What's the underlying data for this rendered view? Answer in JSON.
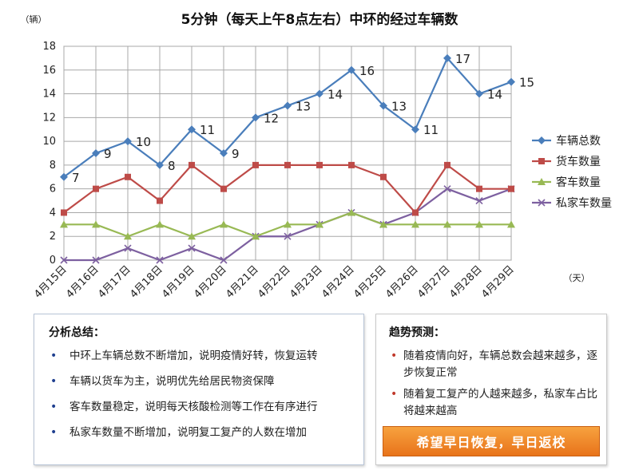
{
  "chart_data": {
    "type": "line",
    "title": "5分钟（每天上午8点左右）中环的经过车辆数",
    "y_unit": "（辆）",
    "x_unit": "（天）",
    "ylim": [
      0,
      18
    ],
    "yticks": [
      0,
      2,
      4,
      6,
      8,
      10,
      12,
      14,
      16,
      18
    ],
    "grid": true,
    "legend_position": "right",
    "categories": [
      "4月15日",
      "4月16日",
      "4月17日",
      "4月18日",
      "4月19日",
      "4月20日",
      "4月21日",
      "4月22日",
      "4月23日",
      "4月24日",
      "4月25日",
      "4月26日",
      "4月27日",
      "4月28日",
      "4月29日"
    ],
    "series": [
      {
        "name": "车辆总数",
        "color": "#4a7ebb",
        "marker": "diamond",
        "labels": true,
        "values": [
          7,
          9,
          10,
          8,
          11,
          9,
          12,
          13,
          14,
          16,
          13,
          11,
          17,
          14,
          15
        ]
      },
      {
        "name": "货车数量",
        "color": "#be4b48",
        "marker": "square",
        "labels": false,
        "values": [
          4,
          6,
          7,
          5,
          8,
          6,
          8,
          8,
          8,
          8,
          7,
          4,
          8,
          6,
          6
        ]
      },
      {
        "name": "客车数量",
        "color": "#98b954",
        "marker": "triangle",
        "labels": false,
        "values": [
          3,
          3,
          2,
          3,
          2,
          3,
          2,
          3,
          3,
          4,
          3,
          3,
          3,
          3,
          3
        ]
      },
      {
        "name": "私家车数量",
        "color": "#7d60a0",
        "marker": "x",
        "labels": false,
        "values": [
          0,
          0,
          1,
          0,
          1,
          0,
          2,
          2,
          3,
          4,
          3,
          4,
          6,
          5,
          6
        ]
      }
    ]
  },
  "analysis": {
    "title": "分析总结：",
    "items": [
      "中环上车辆总数不断增加，说明疫情好转，恢复运转",
      "车辆以货车为主，说明优先给居民物资保障",
      "客车数量稳定，说明每天核酸检测等工作在有序进行",
      "私家车数量不断增加，说明复工复产的人数在增加"
    ]
  },
  "trend": {
    "title": "趋势预测：",
    "items": [
      "随着疫情向好，车辆总数会越来越多，逐步恢复正常",
      "随着复工复产的人越来越多，私家车占比将越来越高"
    ],
    "banner": "希望早日恢复，早日返校"
  }
}
